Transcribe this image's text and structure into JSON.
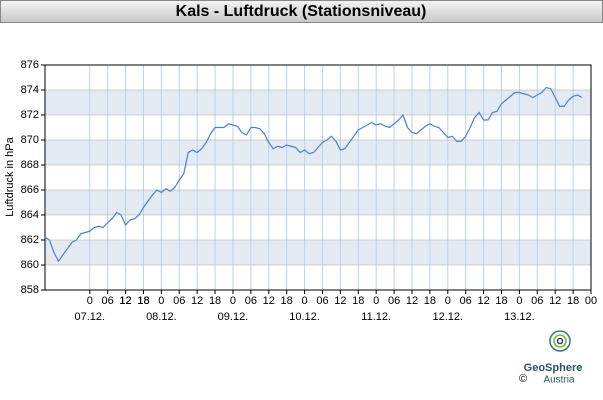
{
  "chart_data": {
    "type": "line",
    "title": "Kals - Luftdruck (Stationsniveau)",
    "y_label": "Luftdruck in hPa",
    "x": [
      -15,
      -13.5,
      -12,
      -10.5,
      -9,
      -7.5,
      -6,
      -4.5,
      -3,
      -1.5,
      0,
      1.5,
      3,
      4.5,
      6,
      7.5,
      9,
      10.5,
      12,
      13.5,
      15,
      16.5,
      18,
      19.5,
      21,
      22.5,
      24,
      25.5,
      27,
      28.5,
      30,
      31.5,
      33,
      34.5,
      36,
      37.5,
      39,
      40.5,
      42,
      43.5,
      45,
      46.5,
      48,
      49.5,
      51,
      52.5,
      54,
      55.5,
      57,
      58.5,
      60,
      61.5,
      63,
      64.5,
      66,
      67.5,
      69,
      70.5,
      72,
      73.5,
      75,
      76.5,
      78,
      79.5,
      81,
      82.5,
      84,
      85.5,
      87,
      88.5,
      90,
      91.5,
      93,
      94.5,
      96,
      97.5,
      99,
      100.5,
      102,
      103.5,
      105,
      106.5,
      108,
      109.5,
      111,
      112.5,
      114,
      115.5,
      117,
      118.5,
      120,
      121.5,
      123,
      124.5,
      126,
      127.5,
      129,
      130.5,
      132,
      133.5,
      135,
      136.5,
      138,
      139.5,
      141,
      142.5,
      144,
      145.5,
      147,
      148.5,
      150,
      151.5,
      153,
      154.5,
      156,
      157.5,
      159,
      160.5,
      162,
      163.5,
      165
    ],
    "series": [
      {
        "color": "#4a7fd4",
        "values": [
          862.2,
          862.0,
          861.0,
          860.3,
          860.8,
          861.3,
          861.8,
          862.0,
          862.5,
          862.6,
          862.7,
          863.0,
          863.1,
          863.0,
          863.4,
          863.7,
          864.2,
          864.0,
          863.2,
          863.6,
          863.7,
          864.0,
          864.6,
          865.1,
          865.6,
          866.0,
          865.8,
          866.1,
          865.9,
          866.2,
          866.8,
          867.3,
          869.0,
          869.2,
          869.0,
          869.3,
          869.8,
          870.5,
          871.0,
          871.0,
          871.0,
          871.3,
          871.2,
          871.1,
          870.6,
          870.4,
          871.0,
          871.0,
          870.9,
          870.5,
          869.8,
          869.3,
          869.5,
          869.4,
          869.6,
          869.5,
          869.4,
          869.0,
          869.2,
          868.9,
          869.0,
          869.4,
          869.8,
          870.0,
          870.3,
          869.9,
          869.2,
          869.3,
          869.8,
          870.3,
          870.8,
          871.0,
          871.2,
          871.4,
          871.2,
          871.3,
          871.1,
          871.0,
          871.3,
          871.6,
          872.0,
          871.0,
          870.6,
          870.5,
          870.8,
          871.1,
          871.3,
          871.1,
          871.0,
          870.6,
          870.2,
          870.3,
          869.9,
          869.9,
          870.3,
          871.0,
          871.8,
          872.2,
          871.6,
          871.6,
          872.2,
          872.3,
          872.9,
          873.2,
          873.5,
          873.8,
          873.8,
          873.7,
          873.6,
          873.4,
          873.6,
          873.8,
          874.2,
          874.1,
          873.4,
          872.7,
          872.7,
          873.2,
          873.5,
          873.6,
          873.4
        ]
      }
    ],
    "xlim": [
      -15,
      168
    ],
    "xticks": [
      12,
      18,
      0,
      {
        "value": 6,
        "label": "06"
      },
      12,
      18,
      {
        "value": 24,
        "label": "0"
      },
      {
        "value": 30,
        "label": "06"
      },
      {
        "value": 36,
        "label": "12"
      },
      {
        "value": 42,
        "label": "18"
      },
      {
        "value": 48,
        "label": "0"
      },
      {
        "value": 54,
        "label": "06"
      },
      {
        "value": 60,
        "label": "12"
      },
      {
        "value": 66,
        "label": "18"
      },
      {
        "value": 72,
        "label": "0"
      },
      {
        "value": 78,
        "label": "06"
      },
      {
        "value": 84,
        "label": "12"
      },
      {
        "value": 90,
        "label": "18"
      },
      {
        "value": 96,
        "label": "0"
      },
      {
        "value": 102,
        "label": "06"
      },
      {
        "value": 108,
        "label": "12"
      },
      {
        "value": 114,
        "label": "18"
      },
      {
        "value": 120,
        "label": "0"
      },
      {
        "value": 126,
        "label": "06"
      },
      {
        "value": 132,
        "label": "12"
      },
      {
        "value": 138,
        "label": "18"
      },
      {
        "value": 144,
        "label": "0"
      },
      {
        "value": 150,
        "label": "06"
      },
      {
        "value": 156,
        "label": "12"
      },
      {
        "value": 162,
        "label": "18"
      },
      {
        "value": 168,
        "label": "00"
      }
    ],
    "day_labels": [
      {
        "value": 0,
        "label": "07.12."
      },
      {
        "value": 24,
        "label": "08.12."
      },
      {
        "value": 48,
        "label": "09.12."
      },
      {
        "value": 72,
        "label": "10.12."
      },
      {
        "value": 96,
        "label": "11.12."
      },
      {
        "value": 120,
        "label": "12.12."
      },
      {
        "value": 144,
        "label": "13.12."
      }
    ],
    "ylim": [
      858,
      876
    ],
    "yticks": [
      858,
      860,
      862,
      864,
      866,
      868,
      870,
      872,
      874,
      876
    ],
    "grid": true,
    "band_color": "#e4eaf2",
    "grid_color": "#b9d3ee"
  },
  "logo": {
    "name": "GeoSphere",
    "sub": "Austria",
    "copyright": "©"
  }
}
